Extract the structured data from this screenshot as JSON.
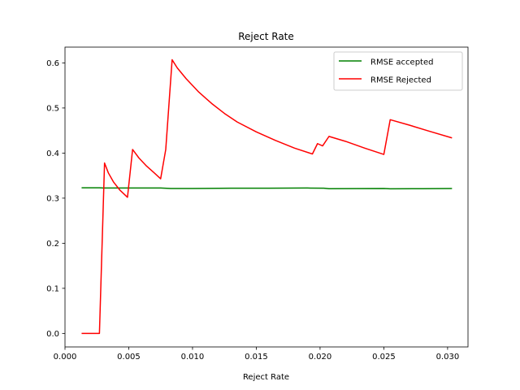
{
  "chart_data": {
    "type": "line",
    "title": "Reject Rate",
    "xlabel": "Reject Rate",
    "ylabel": "",
    "xlim": [
      0.0,
      0.0316
    ],
    "ylim": [
      -0.03,
      0.635
    ],
    "xticks": [
      0.0,
      0.005,
      0.01,
      0.015,
      0.02,
      0.025,
      0.03
    ],
    "xtick_labels": [
      "0.000",
      "0.005",
      "0.010",
      "0.015",
      "0.020",
      "0.025",
      "0.030"
    ],
    "yticks": [
      0.0,
      0.1,
      0.2,
      0.3,
      0.4,
      0.5,
      0.6
    ],
    "ytick_labels": [
      "0.0",
      "0.1",
      "0.2",
      "0.3",
      "0.4",
      "0.5",
      "0.6"
    ],
    "grid": false,
    "legend_position": "top-right",
    "series": [
      {
        "name": "RMSE accepted",
        "color": "#008000",
        "points": [
          [
            0.00135,
            0.323
          ],
          [
            0.0027,
            0.323
          ],
          [
            0.003,
            0.3225
          ],
          [
            0.005,
            0.3225
          ],
          [
            0.0075,
            0.3225
          ],
          [
            0.0083,
            0.3215
          ],
          [
            0.01,
            0.3215
          ],
          [
            0.013,
            0.322
          ],
          [
            0.016,
            0.322
          ],
          [
            0.019,
            0.3225
          ],
          [
            0.0203,
            0.322
          ],
          [
            0.0207,
            0.321
          ],
          [
            0.025,
            0.3215
          ],
          [
            0.0255,
            0.3208
          ],
          [
            0.028,
            0.321
          ],
          [
            0.0303,
            0.3215
          ]
        ]
      },
      {
        "name": "RMSE Rejected",
        "color": "#ff0000",
        "points": [
          [
            0.00135,
            0.0
          ],
          [
            0.0027,
            0.0
          ],
          [
            0.0031,
            0.378
          ],
          [
            0.0034,
            0.356
          ],
          [
            0.0038,
            0.336
          ],
          [
            0.0043,
            0.318
          ],
          [
            0.0049,
            0.302
          ],
          [
            0.0053,
            0.408
          ],
          [
            0.0058,
            0.389
          ],
          [
            0.0064,
            0.371
          ],
          [
            0.007,
            0.356
          ],
          [
            0.0075,
            0.343
          ],
          [
            0.0079,
            0.408
          ],
          [
            0.0084,
            0.607
          ],
          [
            0.0088,
            0.589
          ],
          [
            0.0095,
            0.565
          ],
          [
            0.0105,
            0.535
          ],
          [
            0.0115,
            0.51
          ],
          [
            0.0125,
            0.488
          ],
          [
            0.0135,
            0.469
          ],
          [
            0.015,
            0.447
          ],
          [
            0.0165,
            0.428
          ],
          [
            0.018,
            0.411
          ],
          [
            0.0194,
            0.398
          ],
          [
            0.0198,
            0.421
          ],
          [
            0.0202,
            0.416
          ],
          [
            0.0207,
            0.437
          ],
          [
            0.022,
            0.426
          ],
          [
            0.0235,
            0.411
          ],
          [
            0.025,
            0.397
          ],
          [
            0.0255,
            0.474
          ],
          [
            0.027,
            0.462
          ],
          [
            0.0285,
            0.449
          ],
          [
            0.0303,
            0.434
          ]
        ]
      }
    ]
  }
}
